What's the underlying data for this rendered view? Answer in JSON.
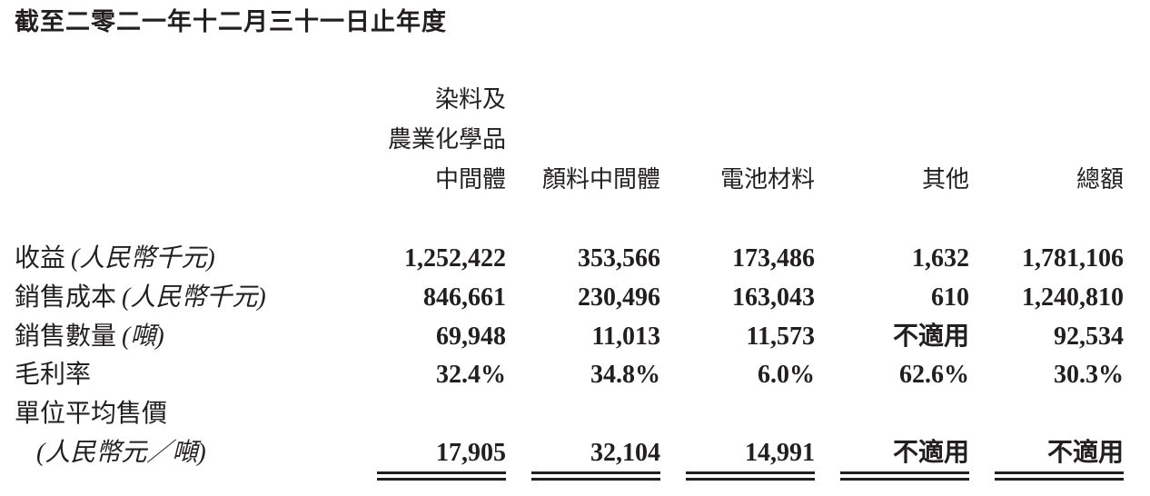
{
  "title": "截至二零二一年十二月三十一日止年度",
  "table": {
    "columns": [
      [
        "染料及",
        "農業化學品",
        "中間體"
      ],
      [
        "顏料中間體"
      ],
      [
        "電池材料"
      ],
      [
        "其他"
      ],
      [
        "總額"
      ]
    ],
    "rows": [
      {
        "label": "收益",
        "unit": "(人民幣千元)",
        "cells": [
          "1,252,422",
          "353,566",
          "173,486",
          "1,632",
          "1,781,106"
        ]
      },
      {
        "label": "銷售成本",
        "unit": "(人民幣千元)",
        "cells": [
          "846,661",
          "230,496",
          "163,043",
          "610",
          "1,240,810"
        ]
      },
      {
        "label": "銷售數量",
        "unit": "(噸)",
        "cells": [
          "69,948",
          "11,013",
          "11,573",
          "不適用",
          "92,534"
        ]
      },
      {
        "label": "毛利率",
        "cells": [
          "32.4%",
          "34.8%",
          "6.0%",
          "62.6%",
          "30.3%"
        ]
      },
      {
        "label": "單位平均售價",
        "unit": "(人民幣元／噸)",
        "cells": [
          "17,905",
          "32,104",
          "14,991",
          "不適用",
          "不適用"
        ]
      }
    ]
  }
}
